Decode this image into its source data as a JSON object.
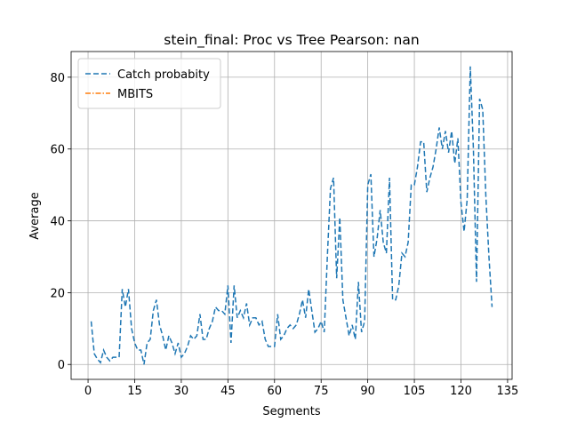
{
  "chart_data": {
    "type": "line",
    "title": "stein_final: Proc vs Tree Pearson: nan",
    "x_label": "Segments",
    "y_label": "Average",
    "x": [
      1,
      2,
      3,
      4,
      5,
      6,
      7,
      8,
      9,
      10,
      11,
      12,
      13,
      14,
      15,
      16,
      17,
      18,
      19,
      20,
      21,
      22,
      23,
      24,
      25,
      26,
      27,
      28,
      29,
      30,
      31,
      32,
      33,
      34,
      35,
      36,
      37,
      38,
      39,
      40,
      41,
      42,
      43,
      44,
      45,
      46,
      47,
      48,
      49,
      50,
      51,
      52,
      53,
      54,
      55,
      56,
      57,
      58,
      59,
      60,
      61,
      62,
      63,
      64,
      65,
      66,
      67,
      68,
      69,
      70,
      71,
      72,
      73,
      74,
      75,
      76,
      77,
      78,
      79,
      80,
      81,
      82,
      83,
      84,
      85,
      86,
      87,
      88,
      89,
      90,
      91,
      92,
      93,
      94,
      95,
      96,
      97,
      98,
      99,
      100,
      101,
      102,
      103,
      104,
      105,
      106,
      107,
      108,
      109,
      110,
      111,
      112,
      113,
      114,
      115,
      116,
      117,
      118,
      119,
      120,
      121,
      122,
      123,
      124,
      125,
      126,
      127,
      128,
      129,
      130
    ],
    "series": [
      {
        "name": "Catch probabity",
        "color": "#1f77b4",
        "dash": "6,3",
        "values": [
          12,
          3,
          1.5,
          0.5,
          4,
          2,
          1,
          2,
          2,
          2,
          21,
          16,
          21,
          10,
          6,
          4,
          4,
          0,
          6,
          7,
          15,
          18,
          11,
          8,
          4,
          8,
          6,
          3,
          6,
          2,
          3,
          5,
          8,
          7,
          8,
          14,
          7,
          7,
          10,
          12,
          16,
          15,
          15,
          14,
          22,
          6,
          22,
          13,
          15,
          13,
          17,
          11,
          13,
          13,
          11,
          12,
          7,
          5,
          5,
          5,
          14,
          7,
          8,
          10,
          11,
          10,
          11,
          14,
          18,
          13,
          21,
          15,
          9,
          10,
          12,
          9,
          30,
          49,
          52,
          24,
          41,
          18,
          13,
          8,
          11,
          7,
          23,
          9,
          12,
          50,
          53,
          30,
          35,
          43,
          34,
          31,
          52,
          18,
          18,
          22,
          31,
          30,
          34,
          50,
          50,
          55,
          62,
          62,
          48,
          52,
          55,
          60,
          66,
          60,
          65,
          59,
          65,
          56,
          63,
          45,
          37,
          46,
          83,
          60,
          23,
          74,
          71,
          47,
          30,
          16
        ]
      },
      {
        "name": "MBITS",
        "color": "#ff7f0e",
        "dash": "6,2,1.5,2",
        "values": [
          null,
          null,
          null,
          null,
          null,
          null,
          null,
          null,
          null,
          null,
          null,
          null,
          null,
          null,
          null,
          null,
          null,
          null,
          null,
          null,
          null,
          null,
          null,
          null,
          null,
          null,
          null,
          null,
          null,
          null,
          null,
          null,
          null,
          null,
          null,
          null,
          null,
          null,
          null,
          null,
          null,
          null,
          null,
          null,
          null,
          null,
          null,
          null,
          null,
          null,
          null,
          null,
          null,
          null,
          null,
          null,
          null,
          null,
          null,
          null,
          null,
          null,
          null,
          null,
          null,
          null,
          null,
          null,
          null,
          null,
          null,
          null,
          null,
          null,
          null,
          null,
          null,
          null,
          null,
          null,
          null,
          null,
          null,
          null,
          null,
          null,
          null,
          null,
          null,
          null,
          null,
          null,
          null,
          null,
          null,
          null,
          null,
          null,
          null,
          null,
          null,
          null,
          null,
          null,
          null,
          null,
          null,
          null,
          null,
          null,
          null,
          null,
          null,
          null,
          null,
          null,
          null,
          null,
          null,
          null,
          null,
          null,
          null,
          null,
          null,
          null,
          null,
          null,
          null,
          null
        ]
      }
    ],
    "xlim": [
      -5.45,
      136.45
    ],
    "ylim": [
      -4.15,
      87.15
    ],
    "xticks": [
      0,
      15,
      30,
      45,
      60,
      75,
      90,
      105,
      120,
      135
    ],
    "yticks": [
      0,
      20,
      40,
      60,
      80
    ],
    "grid": true,
    "legend": "upper-left"
  }
}
